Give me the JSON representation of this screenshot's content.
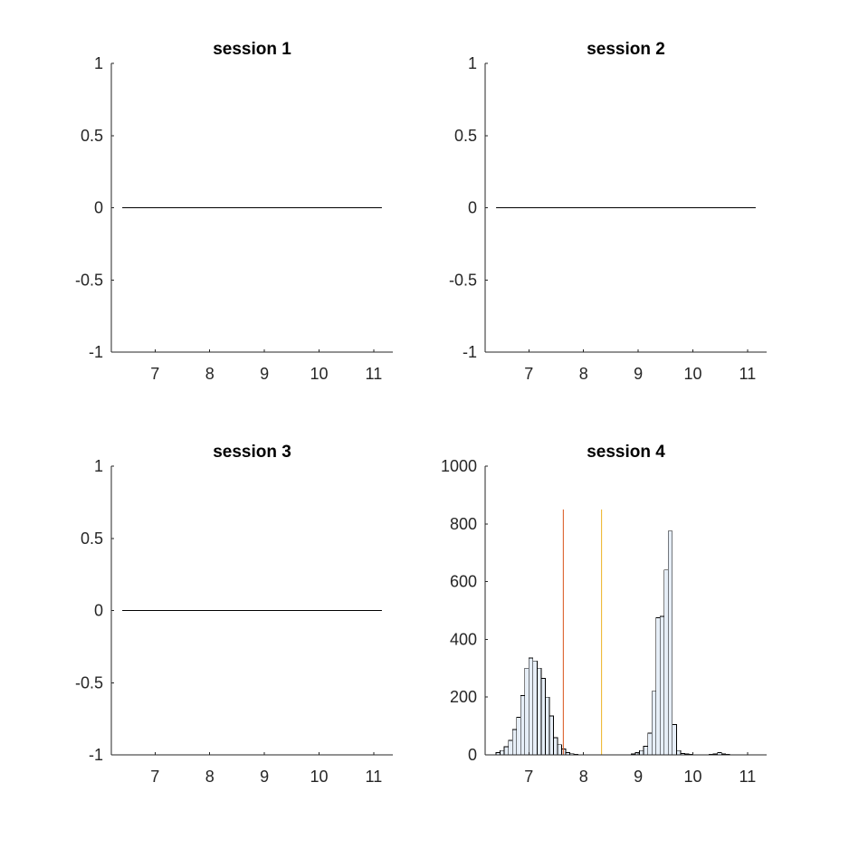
{
  "chart_data": [
    {
      "type": "line",
      "title": "session 1",
      "xlabel": "",
      "ylabel": "",
      "xlim": [
        6.2,
        11.35
      ],
      "ylim": [
        -1,
        1
      ],
      "xticks": [
        7,
        8,
        9,
        10,
        11
      ],
      "xtick_labels": [
        "7",
        "8",
        "9",
        "10",
        "11"
      ],
      "yticks": [
        -1,
        -0.5,
        0,
        0.5,
        1
      ],
      "ytick_labels": [
        "-1",
        "-0.5",
        "0",
        "0.5",
        "1"
      ],
      "grid": false,
      "series": [
        {
          "x": [
            6.4,
            11.15
          ],
          "y": [
            0,
            0
          ],
          "color": "#000000"
        }
      ]
    },
    {
      "type": "line",
      "title": "session 2",
      "xlabel": "",
      "ylabel": "",
      "xlim": [
        6.2,
        11.35
      ],
      "ylim": [
        -1,
        1
      ],
      "xticks": [
        7,
        8,
        9,
        10,
        11
      ],
      "xtick_labels": [
        "7",
        "8",
        "9",
        "10",
        "11"
      ],
      "yticks": [
        -1,
        -0.5,
        0,
        0.5,
        1
      ],
      "ytick_labels": [
        "-1",
        "-0.5",
        "0",
        "0.5",
        "1"
      ],
      "grid": false,
      "series": [
        {
          "x": [
            6.4,
            11.15
          ],
          "y": [
            0,
            0
          ],
          "color": "#000000"
        }
      ]
    },
    {
      "type": "line",
      "title": "session 3",
      "xlabel": "",
      "ylabel": "",
      "xlim": [
        6.2,
        11.35
      ],
      "ylim": [
        -1,
        1
      ],
      "xticks": [
        7,
        8,
        9,
        10,
        11
      ],
      "xtick_labels": [
        "7",
        "8",
        "9",
        "10",
        "11"
      ],
      "yticks": [
        -1,
        -0.5,
        0,
        0.5,
        1
      ],
      "ytick_labels": [
        "-1",
        "-0.5",
        "0",
        "0.5",
        "1"
      ],
      "grid": false,
      "series": [
        {
          "x": [
            6.4,
            11.15
          ],
          "y": [
            0,
            0
          ],
          "color": "#000000"
        }
      ]
    },
    {
      "type": "bar",
      "title": "session 4",
      "xlabel": "",
      "ylabel": "",
      "xlim": [
        6.2,
        11.35
      ],
      "ylim": [
        0,
        1000
      ],
      "xticks": [
        7,
        8,
        9,
        10,
        11
      ],
      "xtick_labels": [
        "7",
        "8",
        "9",
        "10",
        "11"
      ],
      "yticks": [
        0,
        200,
        400,
        600,
        800,
        1000
      ],
      "ytick_labels": [
        "0",
        "200",
        "400",
        "600",
        "800",
        "1000"
      ],
      "grid": false,
      "histogram": {
        "bin_start": 6.4,
        "bin_width": 0.075,
        "counts": [
          8,
          15,
          28,
          50,
          88,
          130,
          205,
          300,
          335,
          325,
          300,
          265,
          200,
          135,
          60,
          35,
          20,
          8,
          4,
          2,
          1,
          1,
          0,
          0,
          0,
          0,
          0,
          0,
          0,
          0,
          0,
          0,
          1,
          3,
          8,
          15,
          30,
          75,
          220,
          475,
          480,
          640,
          775,
          105,
          15,
          5,
          3,
          2,
          1,
          1,
          1,
          1,
          2,
          3,
          8,
          3,
          2,
          1,
          1
        ],
        "bar_color": "#e6eef7",
        "edge_color": "#000000"
      },
      "vlines": [
        {
          "x": 7.63,
          "y_top": 850,
          "color": "#d95319"
        },
        {
          "x": 8.33,
          "y_top": 850,
          "color": "#edb120"
        }
      ]
    }
  ]
}
